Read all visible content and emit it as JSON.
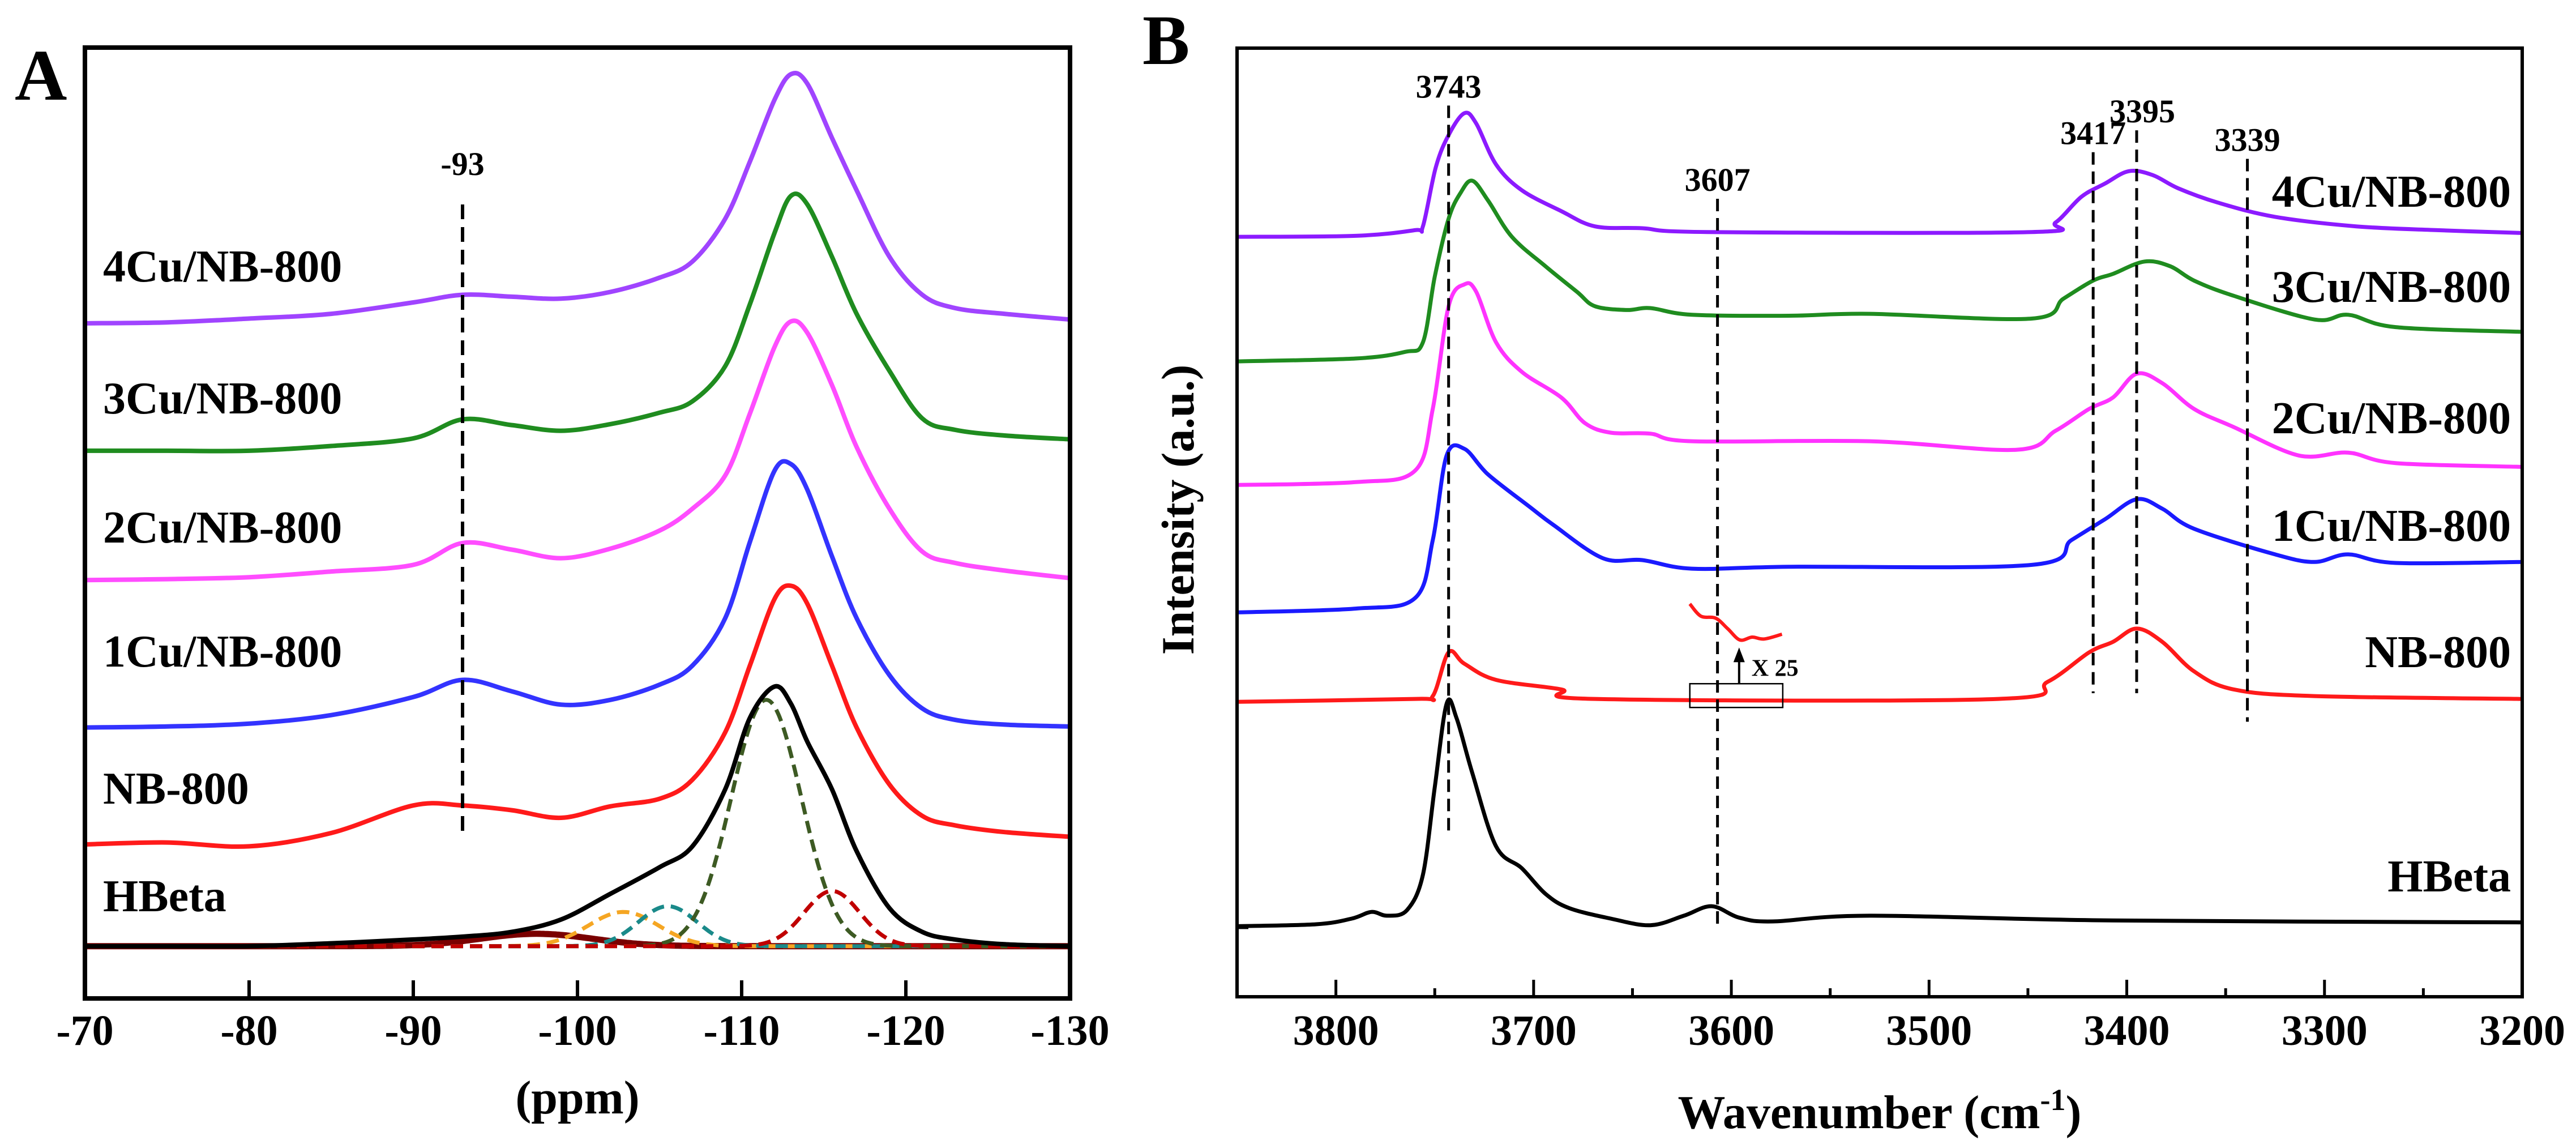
{
  "chart_data": [
    {
      "panel_label": "A",
      "type": "line",
      "title": "",
      "xlabel": "(ppm)",
      "ylabel": "",
      "xlim": [
        -70,
        -130
      ],
      "ylim": [
        0,
        100
      ],
      "x_ticks": [
        "-70",
        "-80",
        "-90",
        "-100",
        "-110",
        "-120",
        "-130"
      ],
      "x_tick_values": [
        -70,
        -80,
        -90,
        -100,
        -110,
        -120,
        -130
      ],
      "grid": false,
      "legend": "labels beside traces, left",
      "x": [
        -70,
        -75,
        -80,
        -85,
        -90,
        -93,
        -96,
        -99,
        -102,
        -105,
        -107,
        -109,
        -110.5,
        -112,
        -113,
        -114,
        -115.5,
        -117,
        -119,
        -121,
        -123,
        -126,
        -130
      ],
      "series": [
        {
          "name": "4Cu/NB-800",
          "color": "#a044ff",
          "y": [
            71.0,
            71.1,
            71.5,
            72.0,
            73.2,
            74.0,
            73.8,
            73.6,
            74.3,
            75.8,
            77.5,
            82,
            88,
            94.5,
            97.2,
            96.2,
            90.5,
            85,
            78,
            74,
            72.6,
            72.0,
            71.4
          ]
        },
        {
          "name": "3Cu/NB-800",
          "color": "#1f8c1f",
          "y": [
            57.6,
            57.6,
            57.6,
            58.1,
            58.9,
            60.9,
            60.3,
            59.7,
            60.4,
            61.6,
            62.8,
            66.5,
            73,
            80.5,
            84.4,
            83.5,
            78,
            72,
            66,
            61,
            59.8,
            59.2,
            58.8
          ]
        },
        {
          "name": "2Cu/NB-800",
          "color": "#ff4dff",
          "y": [
            44.0,
            44.1,
            44.3,
            44.9,
            45.6,
            47.9,
            47.2,
            46.3,
            47.3,
            49.2,
            51.5,
            55,
            61.5,
            68.5,
            71.2,
            70,
            64.5,
            58,
            51.5,
            47,
            45.8,
            45,
            44.2
          ]
        },
        {
          "name": "1Cu/NB-800",
          "color": "#3333ff",
          "y": [
            28.5,
            28.6,
            28.9,
            29.8,
            31.7,
            33.5,
            32.3,
            30.9,
            31.4,
            33,
            35,
            40,
            48,
            55.5,
            56.2,
            53.5,
            46.5,
            40,
            34,
            30.5,
            29.3,
            28.8,
            28.6
          ]
        },
        {
          "name": "NB-800",
          "color": "#ff1a1a",
          "y": [
            16.2,
            16.4,
            16.0,
            17.4,
            20.3,
            20.3,
            19.8,
            19.0,
            20.2,
            21.0,
            23,
            28,
            35,
            42,
            43.4,
            41.5,
            35,
            28.5,
            22.5,
            19.2,
            18.2,
            17.5,
            17.0
          ]
        },
        {
          "name": "HBeta",
          "color": "#000000",
          "y": [
            5.5,
            5.5,
            5.5,
            5.8,
            6.2,
            6.5,
            7.0,
            8.3,
            11,
            13.8,
            16,
            22,
            29.5,
            32.8,
            31,
            27,
            22,
            15.5,
            9.5,
            7,
            6.2,
            5.7,
            5.5
          ]
        }
      ],
      "hbeta_fit": {
        "baseline": 5.5,
        "components": [
          {
            "center": -97.5,
            "amplitude": 1.3,
            "fwhm": 8,
            "color": "#7a0000",
            "style": "solid"
          },
          {
            "center": -102.8,
            "amplitude": 3.6,
            "fwhm": 5,
            "color": "#f5a623",
            "style": "dashed"
          },
          {
            "center": -105.5,
            "amplitude": 4.2,
            "fwhm": 4.2,
            "color": "#1a8a8a",
            "style": "dashed"
          },
          {
            "center": -111.5,
            "amplitude": 25.9,
            "fwhm": 5,
            "color": "#3d5a23",
            "style": "dashed"
          },
          {
            "center": -115.5,
            "amplitude": 5.8,
            "fwhm": 4,
            "color": "#c00000",
            "style": "dashed"
          }
        ]
      },
      "reference_lines": [
        {
          "label": "-93",
          "x": -93,
          "y_from": 16.8,
          "y_to": 83.5
        }
      ]
    },
    {
      "panel_label": "B",
      "type": "line",
      "title": "",
      "xlabel": "Wavenumber (cm",
      "xlabel_superscript": "-1",
      "xlabel_suffix": ")",
      "ylabel": "Intensity (a.u.)",
      "xlim": [
        3850,
        3200
      ],
      "ylim": [
        0,
        100
      ],
      "x_ticks": [
        "3800",
        "3700",
        "3600",
        "3500",
        "3400",
        "3300",
        "3200"
      ],
      "x_tick_values": [
        3800,
        3700,
        3600,
        3500,
        3400,
        3300,
        3200
      ],
      "grid": false,
      "legend": "labels beside traces, right",
      "series": [
        {
          "name": "4Cu/NB-800",
          "color": "#8c1aff",
          "points": [
            [
              3850,
              80.1
            ],
            [
              3790,
              80.2
            ],
            [
              3760,
              80.8
            ],
            [
              3756,
              81.2
            ],
            [
              3749.5,
              87.4
            ],
            [
              3743,
              90.8
            ],
            [
              3735,
              93.1
            ],
            [
              3729,
              92
            ],
            [
              3719,
              87.7
            ],
            [
              3706,
              85
            ],
            [
              3686,
              82.8
            ],
            [
              3669,
              81.2
            ],
            [
              3645,
              81
            ],
            [
              3612,
              80.6
            ],
            [
              3448,
              80.6
            ],
            [
              3436,
              81.6
            ],
            [
              3423,
              84.3
            ],
            [
              3411,
              85.7
            ],
            [
              3399,
              87
            ],
            [
              3387,
              86.6
            ],
            [
              3374,
              85.2
            ],
            [
              3354,
              83.7
            ],
            [
              3325,
              82.2
            ],
            [
              3284,
              81.2
            ],
            [
              3243,
              80.8
            ],
            [
              3200,
              80.5
            ]
          ]
        },
        {
          "name": "3Cu/NB-800",
          "color": "#1f8c1f",
          "points": [
            [
              3850,
              67.0
            ],
            [
              3790,
              67.3
            ],
            [
              3765,
              68
            ],
            [
              3756,
              69
            ],
            [
              3750,
              75.9
            ],
            [
              3743,
              82
            ],
            [
              3737,
              84.7
            ],
            [
              3731,
              86
            ],
            [
              3723,
              83.9
            ],
            [
              3711,
              80.1
            ],
            [
              3694,
              77
            ],
            [
              3678,
              74.3
            ],
            [
              3669,
              72.8
            ],
            [
              3653,
              72.4
            ],
            [
              3641,
              72.6
            ],
            [
              3620,
              71.9
            ],
            [
              3571,
              71.8
            ],
            [
              3530,
              72
            ],
            [
              3448,
              71.5
            ],
            [
              3432,
              73.6
            ],
            [
              3417,
              75.5
            ],
            [
              3407,
              76.2
            ],
            [
              3391,
              77.5
            ],
            [
              3378,
              77
            ],
            [
              3366,
              75.5
            ],
            [
              3346,
              73.9
            ],
            [
              3305,
              71.4
            ],
            [
              3288,
              71.9
            ],
            [
              3264,
              70.6
            ],
            [
              3200,
              70.1
            ]
          ]
        },
        {
          "name": "2Cu/NB-800",
          "color": "#ff33ff",
          "points": [
            [
              3850,
              54.0
            ],
            [
              3790,
              54.3
            ],
            [
              3760,
              55.5
            ],
            [
              3751,
              62
            ],
            [
              3743,
              72.8
            ],
            [
              3735,
              75.1
            ],
            [
              3729,
              74.3
            ],
            [
              3719,
              69
            ],
            [
              3706,
              65.9
            ],
            [
              3686,
              63.2
            ],
            [
              3674,
              60.5
            ],
            [
              3661,
              59.5
            ],
            [
              3641,
              59.4
            ],
            [
              3620,
              58.6
            ],
            [
              3530,
              58.6
            ],
            [
              3456,
              57.7
            ],
            [
              3436,
              59.7
            ],
            [
              3419,
              62
            ],
            [
              3407,
              63.2
            ],
            [
              3395,
              65.7
            ],
            [
              3382,
              64.7
            ],
            [
              3366,
              62
            ],
            [
              3346,
              60.1
            ],
            [
              3313,
              57.1
            ],
            [
              3288,
              57.4
            ],
            [
              3264,
              56.3
            ],
            [
              3200,
              55.9
            ]
          ]
        },
        {
          "name": "1Cu/NB-800",
          "color": "#1a1aff",
          "points": [
            [
              3850,
              40.6
            ],
            [
              3790,
              41.0
            ],
            [
              3760,
              42.1
            ],
            [
              3751,
              48.2
            ],
            [
              3744,
              57.1
            ],
            [
              3735,
              57.8
            ],
            [
              3723,
              55.1
            ],
            [
              3702,
              51.7
            ],
            [
              3690,
              49.8
            ],
            [
              3665,
              46.3
            ],
            [
              3645,
              46.1
            ],
            [
              3620,
              45.2
            ],
            [
              3571,
              45.4
            ],
            [
              3448,
              45.6
            ],
            [
              3428,
              48.2
            ],
            [
              3411,
              50.4
            ],
            [
              3395,
              52.5
            ],
            [
              3382,
              51.5
            ],
            [
              3366,
              49.4
            ],
            [
              3325,
              46.7
            ],
            [
              3305,
              45.9
            ],
            [
              3288,
              46.7
            ],
            [
              3264,
              45.8
            ],
            [
              3200,
              45.9
            ]
          ]
        },
        {
          "name": "NB-800",
          "color": "#ff1a1a",
          "points": [
            [
              3850,
              31.2
            ],
            [
              3760,
              31.5
            ],
            [
              3751,
              31.8
            ],
            [
              3743,
              36.4
            ],
            [
              3735,
              35.2
            ],
            [
              3719,
              33.5
            ],
            [
              3686,
              32.5
            ],
            [
              3669,
              31.5
            ],
            [
              3465,
              31.5
            ],
            [
              3440,
              33.3
            ],
            [
              3419,
              36.4
            ],
            [
              3407,
              37.5
            ],
            [
              3395,
              38.9
            ],
            [
              3382,
              37.5
            ],
            [
              3366,
              34.4
            ],
            [
              3346,
              32.5
            ],
            [
              3305,
              31.8
            ],
            [
              3200,
              31.5
            ]
          ]
        },
        {
          "name": "HBeta",
          "color": "#000000",
          "points": [
            [
              3850,
              7.6
            ],
            [
              3810,
              7.8
            ],
            [
              3792,
              8.4
            ],
            [
              3782,
              9.1
            ],
            [
              3774,
              8.7
            ],
            [
              3764,
              9.3
            ],
            [
              3756,
              13
            ],
            [
              3750,
              22.2
            ],
            [
              3744,
              31
            ],
            [
              3739,
              29.5
            ],
            [
              3731,
              23.7
            ],
            [
              3719,
              16
            ],
            [
              3706,
              13.7
            ],
            [
              3694,
              11
            ],
            [
              3682,
              9.5
            ],
            [
              3661,
              8.4
            ],
            [
              3641,
              7.7
            ],
            [
              3624,
              8.7
            ],
            [
              3610,
              9.7
            ],
            [
              3596,
              8.5
            ],
            [
              3579,
              8.1
            ],
            [
              3530,
              8.7
            ],
            [
              3407,
              8.2
            ],
            [
              3200,
              8.0
            ]
          ]
        }
      ],
      "magnified_inset": {
        "label": "X 25",
        "series_name": "NB-800",
        "color": "#ff1a1a",
        "points": [
          [
            3621,
            41.5
          ],
          [
            3615.4,
            40.2
          ],
          [
            3608,
            40
          ],
          [
            3601.9,
            38.9
          ],
          [
            3595.7,
            37.7
          ],
          [
            3589.5,
            38
          ],
          [
            3583.4,
            37.8
          ],
          [
            3574.4,
            38.3
          ]
        ],
        "box_x": [
          3621,
          3574
        ],
        "box_y": [
          30.6,
          33.1
        ]
      },
      "reference_lines": [
        {
          "label": "3743",
          "x": 3743,
          "y_from": 17.2,
          "y_to": 93.9
        },
        {
          "label": "3607",
          "x": 3607,
          "y_from": 7.4,
          "y_to": 84.1
        },
        {
          "label": "3417",
          "x": 3417,
          "y_from": 32.1,
          "y_to": 89.0
        },
        {
          "label": "3395",
          "x": 3395,
          "y_from": 32.1,
          "y_to": 91.3
        },
        {
          "label": "3339",
          "x": 3339,
          "y_from": 29.1,
          "y_to": 88.3
        }
      ]
    }
  ]
}
